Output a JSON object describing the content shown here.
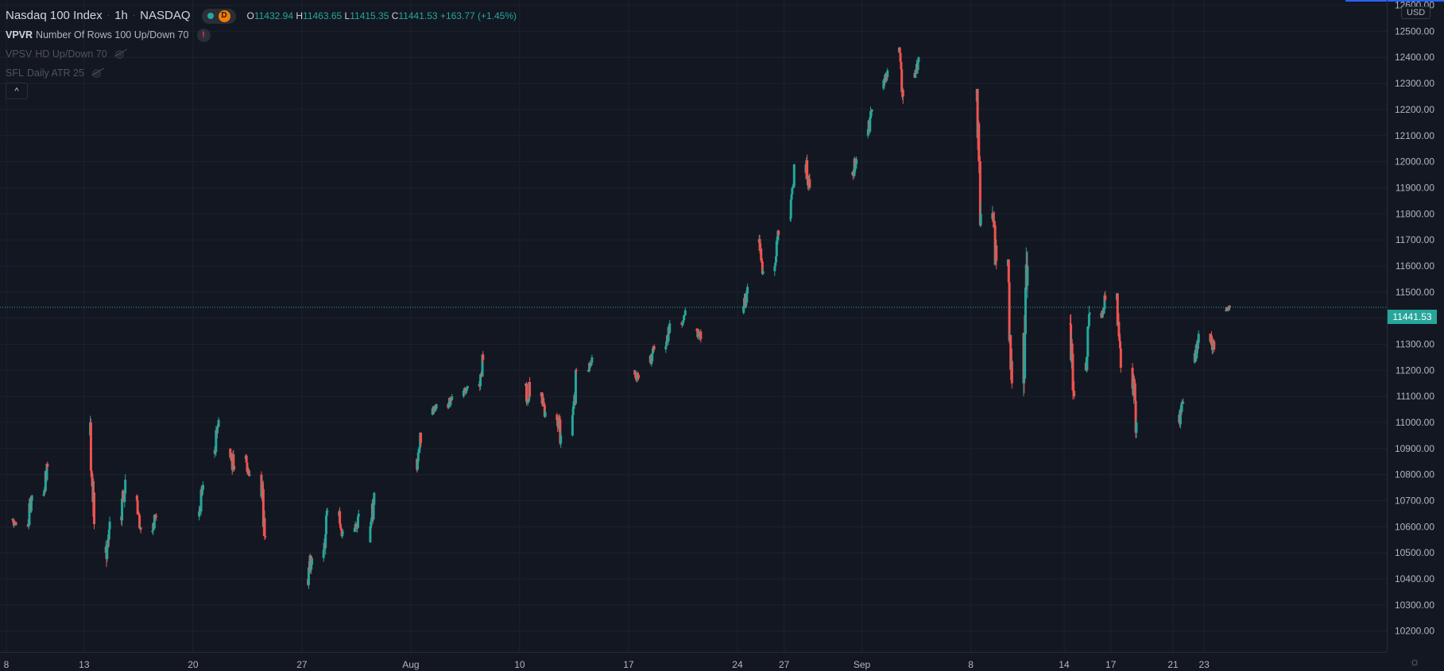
{
  "header": {
    "symbol": "Nasdaq 100 Index",
    "interval": "1h",
    "exchange": "NASDAQ",
    "status_badge": "D",
    "ohlc": {
      "o_label": "O",
      "o": "11432.94",
      "h_label": "H",
      "h": "11463.65",
      "l_label": "L",
      "l": "11415.35",
      "c_label": "C",
      "c": "11441.53",
      "change": "+163.77 (+1.45%)"
    }
  },
  "indicators": [
    {
      "name": "VPVR",
      "params": "Number Of Rows 100 Up/Down 70",
      "status": "warning",
      "warn_symbol": "!"
    },
    {
      "name": "VPSV",
      "params": "HD Up/Down 70",
      "status": "hidden"
    },
    {
      "name": "SFL",
      "params": "Daily ATR 25",
      "status": "hidden"
    }
  ],
  "collapse_symbol": "^",
  "currency": "USD",
  "last_price": "11441.53",
  "colors": {
    "up": "#26a69a",
    "down": "#ef5350",
    "background": "#131722",
    "grid": "#1e222d",
    "axis_text": "#b2b5be"
  },
  "chart_data": {
    "type": "candlestick",
    "interval": "1h",
    "ylim": [
      10120,
      12620
    ],
    "y_ticks": [
      12600,
      12500,
      12400,
      12300,
      12200,
      12100,
      12000,
      11900,
      11800,
      11700,
      11600,
      11500,
      11400,
      11300,
      11200,
      11100,
      11000,
      10900,
      10800,
      10700,
      10600,
      10500,
      10400,
      10300,
      10200
    ],
    "y_tick_labels": [
      "12600.00",
      "12500.00",
      "12400.00",
      "12300.00",
      "12200.00",
      "12100.00",
      "12000.00",
      "11900.00",
      "11800.00",
      "11700.00",
      "11600.00",
      "11500.00",
      "11400.00",
      "11300.00",
      "11200.00",
      "11100.00",
      "11000.00",
      "10900.00",
      "10800.00",
      "10700.00",
      "10600.00",
      "10500.00",
      "10400.00",
      "10300.00",
      "10200.00"
    ],
    "x_tick_labels": [
      "8",
      "13",
      "20",
      "27",
      "Aug",
      "10",
      "17",
      "24",
      "27",
      "Sep",
      "8",
      "14",
      "17",
      "21",
      "23"
    ],
    "x_tick_dates": [
      "2020-07-08",
      "2020-07-13",
      "2020-07-20",
      "2020-07-27",
      "2020-08-03",
      "2020-08-10",
      "2020-08-17",
      "2020-08-24",
      "2020-08-27",
      "2020-09-01",
      "2020-09-08",
      "2020-09-14",
      "2020-09-17",
      "2020-09-21",
      "2020-09-23"
    ],
    "last_price": 11441.53,
    "grid": true,
    "daily_path": [
      {
        "date": "2020-07-08",
        "open": 10630,
        "close": 10610,
        "high": 10660,
        "low": 10560
      },
      {
        "date": "2020-07-09",
        "open": 10610,
        "close": 10720,
        "high": 10750,
        "low": 10580
      },
      {
        "date": "2020-07-10",
        "open": 10720,
        "close": 10830,
        "high": 10850,
        "low": 10690
      },
      {
        "date": "2020-07-13",
        "open": 10950,
        "close": 10610,
        "high": 11070,
        "low": 10590
      },
      {
        "date": "2020-07-14",
        "open": 10500,
        "close": 10620,
        "high": 10640,
        "low": 10370
      },
      {
        "date": "2020-07-15",
        "open": 10640,
        "close": 10780,
        "high": 10810,
        "low": 10600
      },
      {
        "date": "2020-07-16",
        "open": 10720,
        "close": 10590,
        "high": 10730,
        "low": 10560
      },
      {
        "date": "2020-07-17",
        "open": 10580,
        "close": 10640,
        "high": 10660,
        "low": 10500
      },
      {
        "date": "2020-07-20",
        "open": 10640,
        "close": 10760,
        "high": 10790,
        "low": 10600
      },
      {
        "date": "2020-07-21",
        "open": 10880,
        "close": 11010,
        "high": 11020,
        "low": 10860
      },
      {
        "date": "2020-07-22",
        "open": 10900,
        "close": 10820,
        "high": 10950,
        "low": 10780
      },
      {
        "date": "2020-07-23",
        "open": 10860,
        "close": 10800,
        "high": 10890,
        "low": 10770
      },
      {
        "date": "2020-07-24",
        "open": 10800,
        "close": 10560,
        "high": 10820,
        "low": 10520
      },
      {
        "date": "2020-07-27",
        "open": 10400,
        "close": 10480,
        "high": 10520,
        "low": 10310
      },
      {
        "date": "2020-07-28",
        "open": 10480,
        "close": 10660,
        "high": 10690,
        "low": 10460
      },
      {
        "date": "2020-07-29",
        "open": 10640,
        "close": 10580,
        "high": 10680,
        "low": 10520
      },
      {
        "date": "2020-07-30",
        "open": 10580,
        "close": 10650,
        "high": 10680,
        "low": 10530
      },
      {
        "date": "2020-07-31",
        "open": 10540,
        "close": 10730,
        "high": 10740,
        "low": 10520
      },
      {
        "date": "2020-08-03",
        "open": 10860,
        "close": 10920,
        "high": 10940,
        "low": 10690
      },
      {
        "date": "2020-08-04",
        "open": 11030,
        "close": 11070,
        "high": 11100,
        "low": 11000
      },
      {
        "date": "2020-08-05",
        "open": 11070,
        "close": 11100,
        "high": 11120,
        "low": 11020
      },
      {
        "date": "2020-08-06",
        "open": 11100,
        "close": 11140,
        "high": 11160,
        "low": 11080
      },
      {
        "date": "2020-08-07",
        "open": 11140,
        "close": 11240,
        "high": 11280,
        "low": 11120
      },
      {
        "date": "2020-08-10",
        "open": 11140,
        "close": 11100,
        "high": 11180,
        "low": 10960
      },
      {
        "date": "2020-08-11",
        "open": 11100,
        "close": 11040,
        "high": 11110,
        "low": 10990
      },
      {
        "date": "2020-08-12",
        "open": 11030,
        "close": 10950,
        "high": 11050,
        "low": 10860
      },
      {
        "date": "2020-08-13",
        "open": 10950,
        "close": 11200,
        "high": 11220,
        "low": 10940
      },
      {
        "date": "2020-08-14",
        "open": 11200,
        "close": 11250,
        "high": 11270,
        "low": 11180
      },
      {
        "date": "2020-08-17",
        "open": 11200,
        "close": 11170,
        "high": 11220,
        "low": 11110
      },
      {
        "date": "2020-08-18",
        "open": 11230,
        "close": 11280,
        "high": 11300,
        "low": 11210
      },
      {
        "date": "2020-08-19",
        "open": 11280,
        "close": 11380,
        "high": 11400,
        "low": 11260
      },
      {
        "date": "2020-08-20",
        "open": 11380,
        "close": 11430,
        "high": 11450,
        "low": 11340
      },
      {
        "date": "2020-08-21",
        "open": 11360,
        "close": 11320,
        "high": 11390,
        "low": 11270
      },
      {
        "date": "2020-08-24",
        "open": 11420,
        "close": 11520,
        "high": 11540,
        "low": 11390
      },
      {
        "date": "2020-08-25",
        "open": 11690,
        "close": 11580,
        "high": 11720,
        "low": 11540
      },
      {
        "date": "2020-08-26",
        "open": 11580,
        "close": 11720,
        "high": 11740,
        "low": 11560
      },
      {
        "date": "2020-08-27",
        "open": 11780,
        "close": 11990,
        "high": 12040,
        "low": 11770
      },
      {
        "date": "2020-08-28",
        "open": 11990,
        "close": 11900,
        "high": 12050,
        "low": 11850
      },
      {
        "date": "2020-08-31",
        "open": 11950,
        "close": 12010,
        "high": 12040,
        "low": 11880
      },
      {
        "date": "2020-09-01",
        "open": 12100,
        "close": 12200,
        "high": 12230,
        "low": 12080
      },
      {
        "date": "2020-09-02",
        "open": 12280,
        "close": 12350,
        "high": 12380,
        "low": 12250
      },
      {
        "date": "2020-09-03",
        "open": 12420,
        "close": 12250,
        "high": 12440,
        "low": 12180
      },
      {
        "date": "2020-09-04",
        "open": 12340,
        "close": 12400,
        "high": 12440,
        "low": 12300
      },
      {
        "date": "2020-09-08",
        "open": 12230,
        "close": 11800,
        "high": 12250,
        "low": 11750
      },
      {
        "date": "2020-09-09",
        "open": 11780,
        "close": 11620,
        "high": 11830,
        "low": 11500
      },
      {
        "date": "2020-09-10",
        "open": 11600,
        "close": 11150,
        "high": 11620,
        "low": 11130
      },
      {
        "date": "2020-09-11",
        "open": 11150,
        "close": 11600,
        "high": 11720,
        "low": 11100
      },
      {
        "date": "2020-09-14",
        "open": 11380,
        "close": 11100,
        "high": 11420,
        "low": 11070
      },
      {
        "date": "2020-09-15",
        "open": 11200,
        "close": 11420,
        "high": 11460,
        "low": 11180
      },
      {
        "date": "2020-09-16",
        "open": 11420,
        "close": 11470,
        "high": 11550,
        "low": 11400
      },
      {
        "date": "2020-09-17",
        "open": 11470,
        "close": 11210,
        "high": 11480,
        "low": 11170
      },
      {
        "date": "2020-09-18",
        "open": 11210,
        "close": 11000,
        "high": 11250,
        "low": 10940
      },
      {
        "date": "2020-09-21",
        "open": 11000,
        "close": 11080,
        "high": 11100,
        "low": 10960
      },
      {
        "date": "2020-09-22",
        "open": 11230,
        "close": 11340,
        "high": 11360,
        "low": 11210
      },
      {
        "date": "2020-09-23",
        "open": 11340,
        "close": 11280,
        "high": 11360,
        "low": 11200
      },
      {
        "date": "2020-09-24",
        "open": 11430,
        "close": 11441.53,
        "high": 11463.65,
        "low": 11415.35
      }
    ]
  }
}
